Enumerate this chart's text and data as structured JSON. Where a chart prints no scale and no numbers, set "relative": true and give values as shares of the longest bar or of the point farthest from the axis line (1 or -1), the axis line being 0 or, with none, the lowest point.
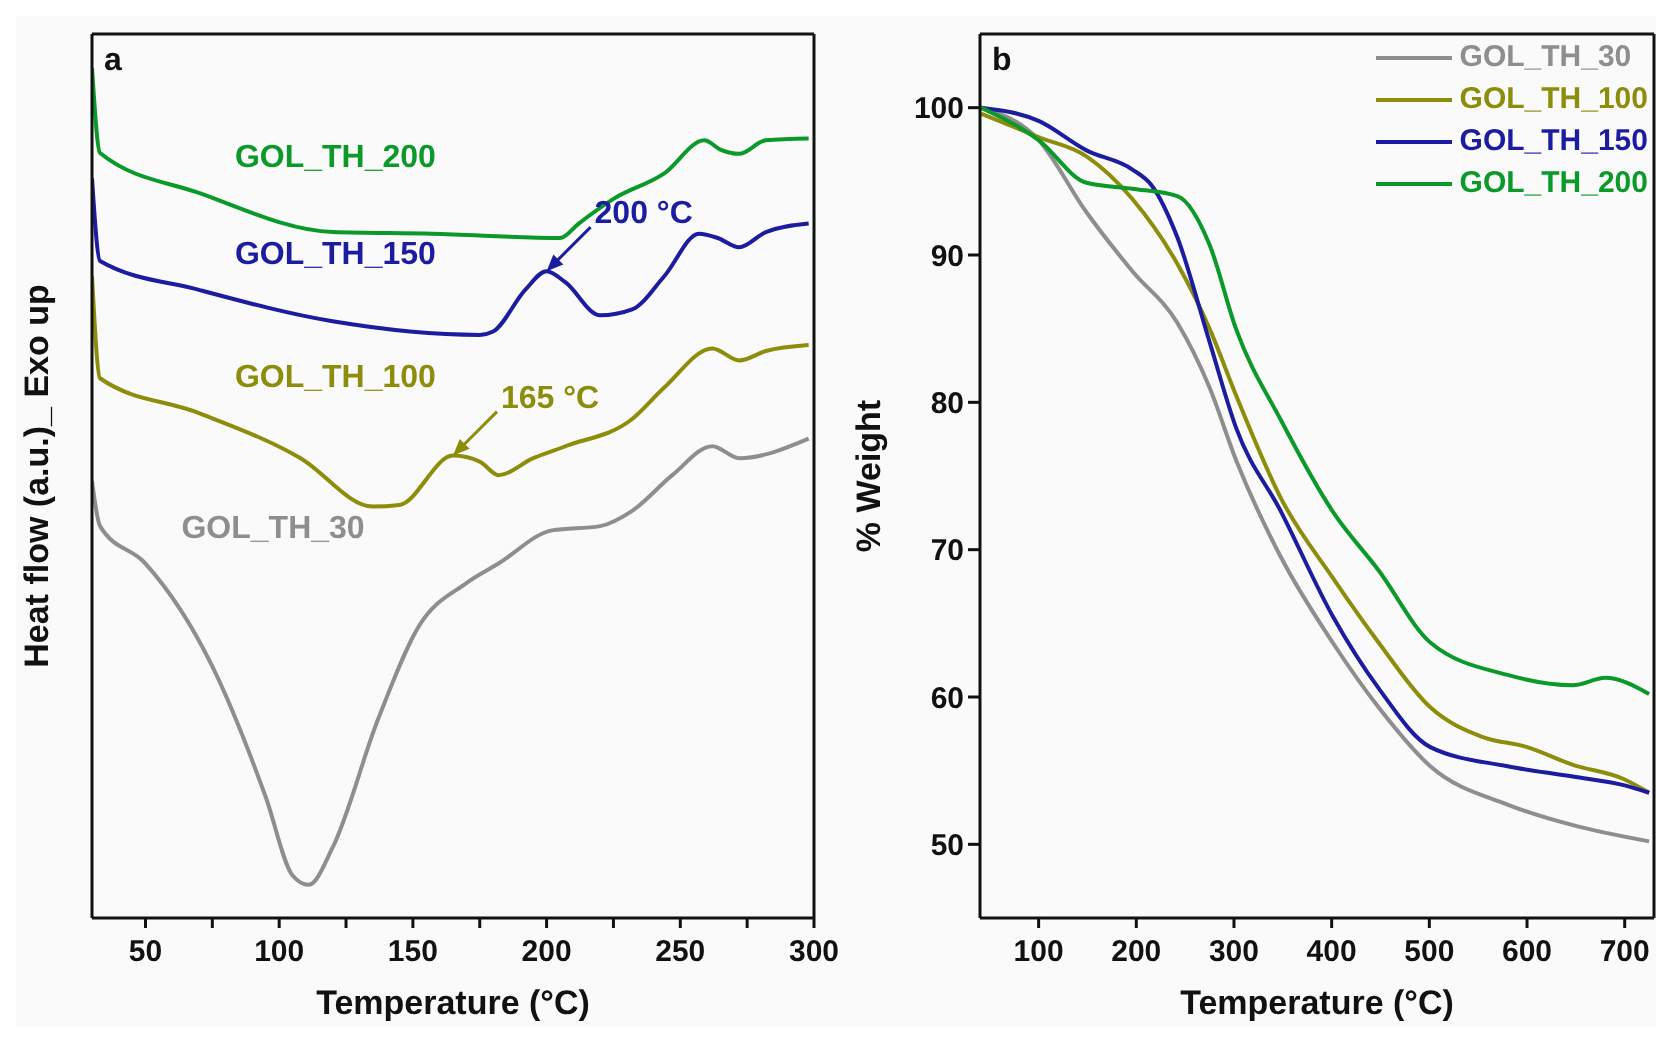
{
  "chart_data": [
    {
      "type": "line",
      "title": "a",
      "xlabel": "Temperature (°C)",
      "ylabel": "Heat flow (a.u.)_ Exo up",
      "relative": true,
      "xlim": [
        30,
        300
      ],
      "xticks": [
        50,
        {
          "value": 75,
          "label": null
        },
        100,
        {
          "value": 125,
          "label": null
        },
        150,
        {
          "value": 175,
          "label": null
        },
        200,
        {
          "value": 225,
          "label": null
        },
        250,
        {
          "value": 275,
          "label": null
        },
        300
      ],
      "legend": false,
      "series": [
        {
          "name": "GOL_TH_200",
          "color": "#0b9a2a",
          "x": [
            30,
            33,
            70,
            120,
            157,
            205,
            212,
            225,
            244,
            259,
            265,
            272,
            282,
            298
          ],
          "values": [
            1.0,
            0.9,
            0.853,
            0.807,
            0.805,
            0.8,
            0.817,
            0.846,
            0.876,
            0.915,
            0.904,
            0.899,
            0.915,
            0.917
          ]
        },
        {
          "name": "GOL_TH_150",
          "color": "#1c1ca0",
          "x": [
            30,
            33,
            70,
            120,
            175,
            180,
            192,
            200,
            207,
            220,
            232,
            244,
            257,
            264,
            272,
            282,
            298
          ],
          "values": [
            0.87,
            0.773,
            0.739,
            0.702,
            0.686,
            0.69,
            0.739,
            0.761,
            0.748,
            0.709,
            0.716,
            0.755,
            0.805,
            0.8,
            0.789,
            0.807,
            0.817
          ]
        },
        {
          "name": "GOL_TH_100",
          "color": "#8d8d0c",
          "x": [
            30,
            33,
            70,
            108,
            135,
            145,
            165,
            175,
            182,
            195,
            207,
            232,
            244,
            262,
            272,
            282,
            298
          ],
          "values": [
            0.755,
            0.635,
            0.594,
            0.541,
            0.484,
            0.486,
            0.544,
            0.537,
            0.521,
            0.541,
            0.555,
            0.587,
            0.624,
            0.67,
            0.656,
            0.667,
            0.674
          ]
        },
        {
          "name": "GOL_TH_30",
          "color": "#8e8e8e",
          "x": [
            30,
            33,
            50,
            75,
            95,
            105,
            111,
            120,
            137,
            152,
            170,
            182,
            202,
            220,
            232,
            247,
            262,
            272,
            298
          ],
          "values": [
            0.514,
            0.461,
            0.417,
            0.296,
            0.142,
            0.05,
            0.039,
            0.083,
            0.234,
            0.342,
            0.394,
            0.417,
            0.456,
            0.461,
            0.479,
            0.521,
            0.555,
            0.541,
            0.564
          ]
        }
      ],
      "annotations": [
        {
          "text": "200 °C",
          "x": 200,
          "y": 0.761
        },
        {
          "text": "165 °C",
          "x": 165,
          "y": 0.544
        }
      ]
    },
    {
      "type": "line",
      "title": "b",
      "xlabel": "Temperature (°C)",
      "ylabel": "% Weight",
      "xlim": [
        40,
        730
      ],
      "xticks": [
        100,
        200,
        300,
        400,
        500,
        600,
        700
      ],
      "ylim": [
        45,
        105
      ],
      "yticks": [
        50,
        60,
        70,
        80,
        90,
        100
      ],
      "legend": "top right",
      "series": [
        {
          "name": "GOL_TH_30",
          "color": "#8e8e8e",
          "x": [
            41,
            100,
            149,
            196,
            242,
            275,
            302,
            348,
            401,
            448,
            501,
            580,
            647,
            725
          ],
          "values": [
            100,
            97.8,
            92.9,
            88.9,
            85.4,
            81,
            76.1,
            69.5,
            63.7,
            59.3,
            55.3,
            52.7,
            51.3,
            50.2
          ]
        },
        {
          "name": "GOL_TH_100",
          "color": "#8d8d0c",
          "x": [
            41,
            100,
            149,
            196,
            242,
            275,
            302,
            348,
            401,
            448,
            501,
            554,
            600,
            647,
            700,
            725
          ],
          "values": [
            99.6,
            98,
            96.7,
            93.8,
            89.4,
            85,
            80.5,
            73.5,
            68.1,
            63.7,
            59.3,
            57.3,
            56.6,
            55.4,
            54.4,
            53.5
          ]
        },
        {
          "name": "GOL_TH_150",
          "color": "#1c1ca0",
          "x": [
            41,
            100,
            149,
            196,
            216,
            242,
            275,
            302,
            348,
            401,
            448,
            501,
            580,
            647,
            700,
            725
          ],
          "values": [
            100,
            99.1,
            97.1,
            95.8,
            94.7,
            91.2,
            84.1,
            78.3,
            72.6,
            65.5,
            60.6,
            56.6,
            55.3,
            54.6,
            54,
            53.5
          ]
        },
        {
          "name": "GOL_TH_200",
          "color": "#0b9a2a",
          "x": [
            41,
            100,
            149,
            196,
            242,
            275,
            302,
            348,
            401,
            448,
            501,
            580,
            647,
            680,
            725
          ],
          "values": [
            100,
            97.8,
            94.9,
            94.5,
            94,
            90.7,
            85,
            78.8,
            72.6,
            68.6,
            63.7,
            61.5,
            60.8,
            61.3,
            60.2
          ]
        }
      ]
    }
  ]
}
